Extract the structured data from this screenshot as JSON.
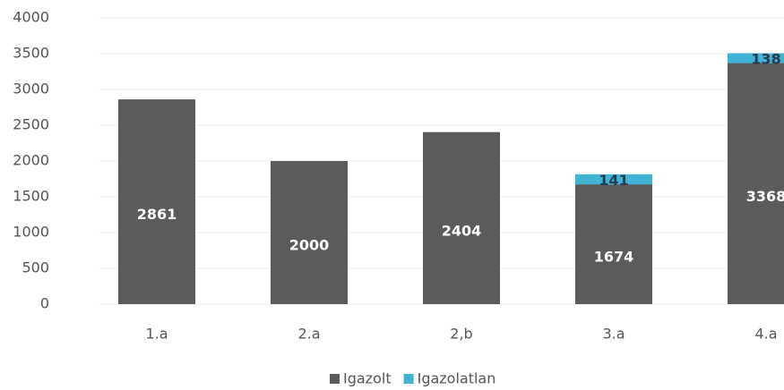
{
  "chart_data": {
    "type": "stacked_bar",
    "categories": [
      "1.a",
      "2.a",
      "2,b",
      "3.a",
      "4.a"
    ],
    "series": [
      {
        "name": "Igazolt",
        "color": "#5b5b5b",
        "values": [
          2861,
          2000,
          2404,
          1674,
          3368
        ]
      },
      {
        "name": "Igazolatlan",
        "color": "#3fb4d6",
        "values": [
          null,
          null,
          null,
          141,
          138
        ]
      }
    ],
    "ylim": [
      0,
      4000
    ],
    "yticks": [
      0,
      500,
      1000,
      1500,
      2000,
      2500,
      3000,
      3500,
      4000
    ],
    "grid": true,
    "legend": "bottom"
  }
}
